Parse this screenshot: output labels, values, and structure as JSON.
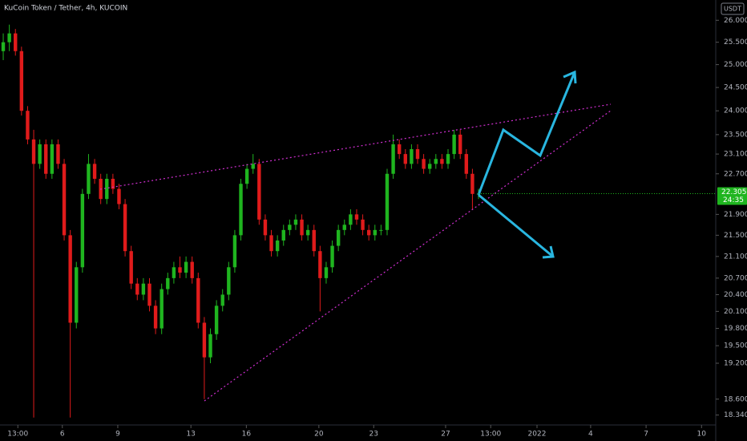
{
  "chart_data": {
    "type": "candlestick",
    "title": "KuCoin Token / Tether, 4h, KUCOIN",
    "currency": "USDT",
    "log_scale": true,
    "grid": false,
    "up_color": "#1fb51f",
    "down_color": "#e01b1b",
    "x": [
      0,
      1,
      2,
      3,
      4,
      5,
      6,
      7,
      8,
      9,
      10,
      11,
      12,
      13,
      14,
      15,
      16,
      17,
      18,
      19,
      20,
      21,
      22,
      23,
      24,
      25,
      26,
      27,
      28,
      29,
      30,
      31,
      32,
      33,
      34,
      35,
      36,
      37,
      38,
      39,
      40,
      41,
      42,
      43,
      44,
      45,
      46,
      47,
      48,
      49,
      50,
      51,
      52,
      53,
      54,
      55,
      56,
      57,
      58,
      59,
      60,
      61,
      62,
      63,
      64,
      65,
      66,
      67,
      68,
      69,
      70,
      71,
      72,
      73,
      74,
      75,
      76,
      77,
      78
    ],
    "open": [
      25.3,
      25.5,
      25.7,
      25.3,
      24.0,
      23.4,
      22.9,
      23.3,
      22.7,
      23.3,
      22.9,
      21.5,
      19.9,
      20.9,
      22.3,
      22.9,
      22.6,
      22.2,
      22.6,
      22.4,
      22.1,
      21.2,
      20.6,
      20.4,
      20.6,
      20.2,
      19.8,
      20.5,
      20.7,
      20.9,
      20.8,
      21.0,
      20.7,
      19.9,
      19.3,
      19.7,
      20.2,
      20.4,
      20.9,
      21.5,
      22.5,
      22.8,
      22.9,
      21.8,
      21.5,
      21.2,
      21.4,
      21.6,
      21.7,
      21.8,
      21.5,
      21.6,
      21.2,
      20.7,
      20.9,
      21.3,
      21.6,
      21.7,
      21.9,
      21.8,
      21.6,
      21.5,
      21.6,
      21.6,
      22.7,
      23.3,
      23.1,
      22.9,
      23.2,
      23.0,
      22.8,
      22.9,
      23.0,
      22.9,
      23.1,
      23.5,
      23.1,
      22.7,
      22.3
    ],
    "close": [
      25.5,
      25.7,
      25.3,
      24.0,
      23.4,
      22.9,
      23.3,
      22.7,
      23.3,
      22.9,
      21.5,
      19.9,
      20.9,
      22.3,
      22.9,
      22.6,
      22.2,
      22.6,
      22.4,
      22.1,
      21.2,
      20.6,
      20.4,
      20.6,
      20.2,
      19.8,
      20.5,
      20.7,
      20.9,
      20.8,
      21.0,
      20.7,
      19.9,
      19.3,
      19.7,
      20.2,
      20.4,
      20.9,
      21.5,
      22.5,
      22.8,
      22.9,
      21.8,
      21.5,
      21.2,
      21.4,
      21.6,
      21.7,
      21.8,
      21.5,
      21.6,
      21.2,
      20.7,
      20.9,
      21.3,
      21.6,
      21.7,
      21.9,
      21.8,
      21.6,
      21.5,
      21.6,
      21.6,
      22.7,
      23.3,
      23.1,
      22.9,
      23.2,
      23.0,
      22.8,
      22.9,
      23.0,
      22.9,
      23.1,
      23.5,
      23.1,
      22.7,
      22.3,
      22.305
    ],
    "high": [
      25.7,
      25.9,
      25.8,
      25.4,
      24.1,
      23.6,
      23.4,
      23.4,
      23.4,
      23.4,
      23.0,
      21.6,
      21.0,
      22.4,
      23.1,
      23.0,
      22.7,
      22.7,
      22.7,
      22.5,
      22.2,
      21.3,
      20.7,
      20.7,
      20.7,
      20.3,
      20.6,
      20.8,
      21.0,
      21.1,
      21.1,
      21.1,
      20.8,
      20.0,
      19.8,
      20.3,
      20.5,
      21.0,
      21.6,
      22.6,
      22.9,
      23.1,
      23.0,
      21.9,
      21.6,
      21.5,
      21.7,
      21.8,
      21.9,
      21.9,
      21.7,
      21.7,
      21.3,
      21.0,
      21.4,
      21.7,
      21.8,
      22.0,
      22.0,
      21.9,
      21.7,
      21.7,
      21.7,
      22.8,
      23.5,
      23.4,
      23.2,
      23.3,
      23.3,
      23.1,
      23.0,
      23.1,
      23.1,
      23.2,
      23.6,
      23.6,
      23.2,
      22.8,
      22.4
    ],
    "low": [
      25.1,
      25.3,
      25.2,
      23.9,
      23.3,
      18.3,
      22.8,
      22.6,
      22.6,
      22.8,
      21.4,
      18.3,
      19.8,
      20.8,
      22.2,
      22.5,
      22.1,
      22.1,
      22.3,
      22.0,
      21.1,
      20.5,
      20.3,
      20.3,
      20.1,
      19.7,
      19.7,
      20.4,
      20.6,
      20.7,
      20.7,
      20.6,
      19.8,
      18.6,
      19.2,
      19.6,
      20.1,
      20.3,
      20.8,
      21.4,
      22.4,
      22.7,
      21.7,
      21.4,
      21.1,
      21.1,
      21.3,
      21.5,
      21.6,
      21.4,
      21.4,
      21.1,
      20.1,
      20.6,
      20.8,
      21.2,
      21.5,
      21.6,
      21.7,
      21.5,
      21.4,
      21.4,
      21.5,
      21.5,
      22.6,
      23.0,
      22.8,
      22.8,
      22.9,
      22.7,
      22.7,
      22.8,
      22.8,
      22.8,
      23.0,
      23.0,
      22.6,
      22.0,
      22.2
    ],
    "xlim": [
      -0.53,
      116.8
    ],
    "xticks": [
      {
        "value": 2.4,
        "label": "13:00"
      },
      {
        "value": 9.7,
        "label": "6"
      },
      {
        "value": 18.8,
        "label": "9"
      },
      {
        "value": 30.8,
        "label": "13"
      },
      {
        "value": 39.9,
        "label": "16"
      },
      {
        "value": 51.8,
        "label": "20"
      },
      {
        "value": 60.8,
        "label": "23"
      },
      {
        "value": 72.6,
        "label": "27"
      },
      {
        "value": 80,
        "label": "13:00"
      },
      {
        "value": 87.6,
        "label": "2022"
      },
      {
        "value": 96.4,
        "label": "4"
      },
      {
        "value": 105.5,
        "label": "7"
      },
      {
        "value": 114.6,
        "label": "10"
      }
    ],
    "ylim": [
      18.18,
      26.47
    ],
    "yticks": [
      {
        "value": 26,
        "label": "26.000"
      },
      {
        "value": 25.5,
        "label": "25.500"
      },
      {
        "value": 25,
        "label": "25.000"
      },
      {
        "value": 24.5,
        "label": "24.500"
      },
      {
        "value": 24,
        "label": "24.000"
      },
      {
        "value": 23.5,
        "label": "23.500"
      },
      {
        "value": 23.1,
        "label": "23.100"
      },
      {
        "value": 22.7,
        "label": "22.700"
      },
      {
        "value": 21.9,
        "label": "21.900"
      },
      {
        "value": 21.5,
        "label": "21.500"
      },
      {
        "value": 21.1,
        "label": "21.100"
      },
      {
        "value": 20.7,
        "label": "20.700"
      },
      {
        "value": 20.4,
        "label": "20.400"
      },
      {
        "value": 20.1,
        "label": "20.100"
      },
      {
        "value": 19.8,
        "label": "19.800"
      },
      {
        "value": 19.5,
        "label": "19.500"
      },
      {
        "value": 19.2,
        "label": "19.200"
      },
      {
        "value": 18.6,
        "label": "18.600"
      },
      {
        "value": 18.34,
        "label": "18.340"
      }
    ],
    "last_price": 22.305,
    "countdown": "24:35"
  }
}
